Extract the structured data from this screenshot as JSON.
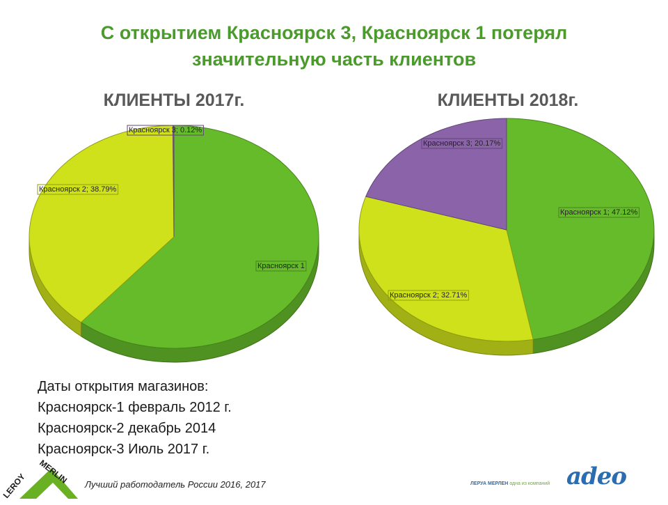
{
  "title": {
    "line1": "С открытием Красноярск 3, Красноярск 1 потерял",
    "line2": "значительную часть клиентов"
  },
  "colors": {
    "title_green": "#4a9a2c",
    "krasnoyarsk1": "#66bb2a",
    "krasnoyarsk2": "#cfe11b",
    "krasnoyarsk3": "#8b63a8"
  },
  "chart_data": [
    {
      "type": "pie",
      "title": "КЛИЕНТЫ 2017г.",
      "slices": [
        {
          "name": "Красноярск 1",
          "value": 61.09,
          "label": "Красноярск 1",
          "color": "#66bb2a"
        },
        {
          "name": "Красноярск 2",
          "value": 38.79,
          "label": "Красноярск 2; 38.79%",
          "color": "#cfe11b"
        },
        {
          "name": "Красноярск 3",
          "value": 0.12,
          "label": "Красноярск 3; 0.12%",
          "color": "#8b63a8"
        }
      ]
    },
    {
      "type": "pie",
      "title": "КЛИЕНТЫ 2018г.",
      "slices": [
        {
          "name": "Красноярск 1",
          "value": 47.12,
          "label": "Красноярск 1; 47.12%",
          "color": "#66bb2a"
        },
        {
          "name": "Красноярск 2",
          "value": 32.71,
          "label": "Красноярск 2; 32.71%",
          "color": "#cfe11b"
        },
        {
          "name": "Красноярск 3",
          "value": 20.17,
          "label": "Красноярск 3; 20.17%",
          "color": "#8b63a8"
        }
      ]
    }
  ],
  "dates": {
    "heading": "Даты открытия магазинов:",
    "lines": [
      "Красноярск-1 февраль 2012 г.",
      "Красноярск-2 декабрь 2014",
      "Красноярск-3 Июль 2017 г."
    ]
  },
  "footer": {
    "tagline": "Лучший работодатель России 2016, 2017",
    "logo_text_top": "MERLIN",
    "logo_text_left": "LEROY",
    "adeo_company": "ЛЕРУА МЕРЛЕН",
    "adeo_sub": "одна из компаний",
    "adeo_word": "adeo"
  }
}
